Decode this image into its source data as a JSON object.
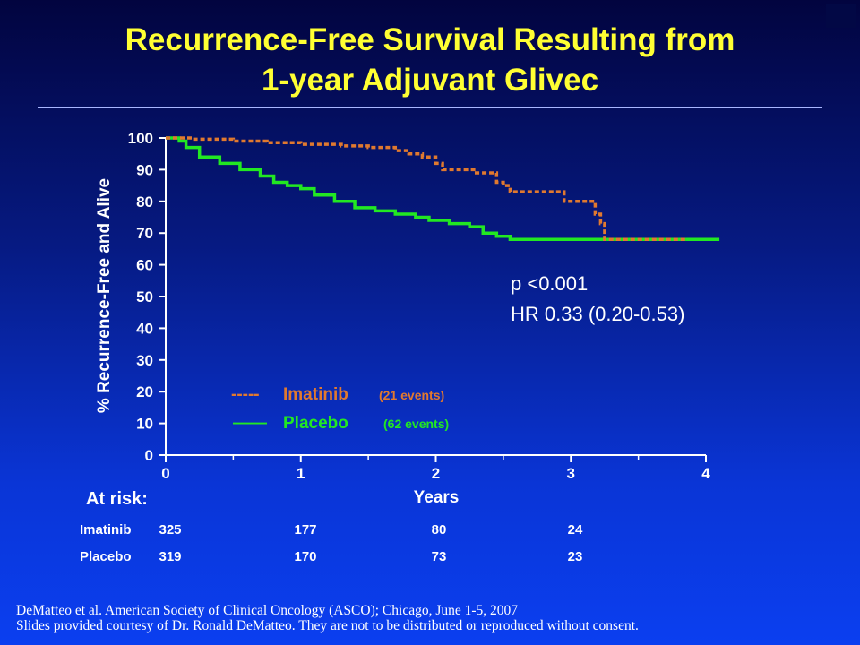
{
  "slide": {
    "title_line1": "Recurrence-Free Survival Resulting from",
    "title_line2": "1-year Adjuvant Glivec",
    "title_color": "#ffff33",
    "background_top": "#02043f",
    "background_bottom": "#0b3ff0"
  },
  "stats": {
    "p_value": "p <0.001",
    "hazard_ratio": "HR 0.33 (0.20-0.53)"
  },
  "legend": {
    "items": [
      {
        "line": "-----",
        "name": "Imatinib",
        "events": "(21 events)",
        "color": "#e0792f"
      },
      {
        "line": "——",
        "name": "Placebo",
        "events": "(62 events)",
        "color": "#22e822"
      }
    ]
  },
  "at_risk": {
    "title": "At risk:",
    "rows": [
      {
        "label": "Imatinib",
        "values": [
          "325",
          "177",
          "80",
          "24"
        ]
      },
      {
        "label": "Placebo",
        "values": [
          "319",
          "170",
          "73",
          "23"
        ]
      }
    ]
  },
  "footer": {
    "line1": "DeMatteo et al. American Society of Clinical Oncology (ASCO); Chicago, June 1-5, 2007",
    "line2": "Slides provided courtesy of Dr. Ronald DeMatteo. They are not to be distributed or reproduced without consent."
  },
  "chart_data": {
    "type": "line",
    "step": true,
    "xlabel": "Years",
    "ylabel": "% Recurrence-Free and Alive",
    "xlim": [
      0,
      4
    ],
    "ylim": [
      0,
      100
    ],
    "x_ticks": [
      "0",
      "1",
      "2",
      "3",
      "4"
    ],
    "y_ticks": [
      "0",
      "10",
      "20",
      "30",
      "40",
      "50",
      "60",
      "70",
      "80",
      "90",
      "100"
    ],
    "grid": false,
    "legend_position": "bottom-left",
    "series": [
      {
        "name": "Imatinib",
        "color": "#e0792f",
        "dashed": true,
        "points": [
          [
            0,
            100
          ],
          [
            0.2,
            99.6
          ],
          [
            0.5,
            99
          ],
          [
            0.75,
            98.5
          ],
          [
            1.0,
            98
          ],
          [
            1.3,
            97.5
          ],
          [
            1.5,
            97
          ],
          [
            1.7,
            96
          ],
          [
            1.8,
            95
          ],
          [
            1.9,
            94
          ],
          [
            2.0,
            92
          ],
          [
            2.05,
            90
          ],
          [
            2.3,
            89
          ],
          [
            2.45,
            86
          ],
          [
            2.5,
            85
          ],
          [
            2.55,
            83
          ],
          [
            2.9,
            83
          ],
          [
            2.95,
            80
          ],
          [
            3.15,
            80
          ],
          [
            3.18,
            76
          ],
          [
            3.22,
            73
          ],
          [
            3.25,
            68
          ],
          [
            3.85,
            68
          ]
        ]
      },
      {
        "name": "Placebo",
        "color": "#22e822",
        "dashed": false,
        "points": [
          [
            0,
            100
          ],
          [
            0.1,
            99
          ],
          [
            0.15,
            97
          ],
          [
            0.25,
            94
          ],
          [
            0.4,
            92
          ],
          [
            0.55,
            90
          ],
          [
            0.7,
            88
          ],
          [
            0.8,
            86
          ],
          [
            0.9,
            85
          ],
          [
            1.0,
            84
          ],
          [
            1.1,
            82
          ],
          [
            1.25,
            80
          ],
          [
            1.4,
            78
          ],
          [
            1.55,
            77
          ],
          [
            1.7,
            76
          ],
          [
            1.85,
            75
          ],
          [
            1.95,
            74
          ],
          [
            2.1,
            73
          ],
          [
            2.25,
            72
          ],
          [
            2.35,
            70
          ],
          [
            2.45,
            69
          ],
          [
            2.55,
            68
          ],
          [
            3.0,
            68
          ],
          [
            4.1,
            68
          ]
        ]
      }
    ]
  }
}
